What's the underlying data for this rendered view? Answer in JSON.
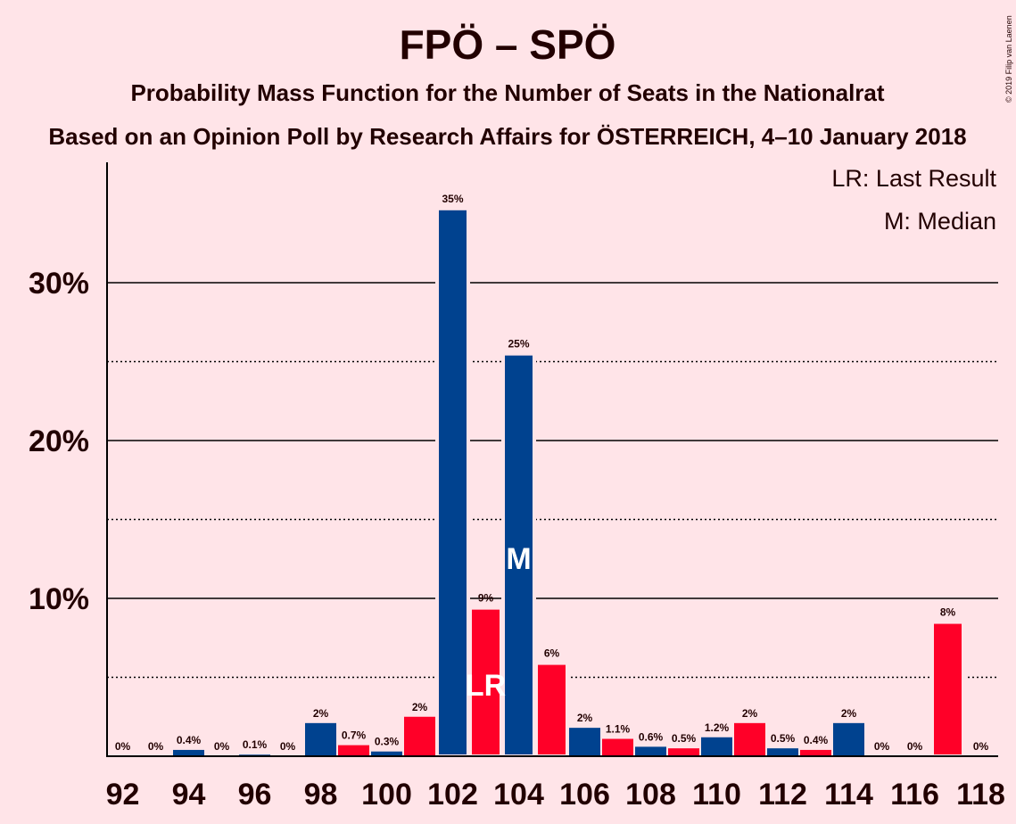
{
  "chart_data": {
    "type": "bar",
    "title": "FPÖ – SPÖ",
    "subtitle": "Probability Mass Function for the Number of Seats in the Nationalrat",
    "subtitle2": "Based on an Opinion Poll by Research Affairs for ÖSTERREICH, 4–10 January 2018",
    "copyright": "© 2019 Filip van Laenen",
    "legend": [
      "LR: Last Result",
      "M: Median"
    ],
    "ylim": [
      0,
      37
    ],
    "y_ticks": [
      {
        "value": 10,
        "label": "10%"
      },
      {
        "value": 20,
        "label": "20%"
      },
      {
        "value": 30,
        "label": "30%"
      }
    ],
    "y_dotted": [
      5,
      15,
      25
    ],
    "x_tick_labels": [
      "92",
      "94",
      "96",
      "98",
      "100",
      "102",
      "104",
      "106",
      "108",
      "110",
      "112",
      "114",
      "116",
      "118"
    ],
    "colors": {
      "blue": "#00428f",
      "red": "#ff0028",
      "background": "#ffe4e8",
      "text": "#220000"
    },
    "bars": [
      {
        "seats": 92,
        "value": 0,
        "label": "0%",
        "color": "blue"
      },
      {
        "seats": 93,
        "value": 0,
        "label": "0%",
        "color": "red"
      },
      {
        "seats": 94,
        "value": 0.4,
        "label": "0.4%",
        "color": "blue"
      },
      {
        "seats": 95,
        "value": 0,
        "label": "0%",
        "color": "red"
      },
      {
        "seats": 96,
        "value": 0.1,
        "label": "0.1%",
        "color": "blue"
      },
      {
        "seats": 97,
        "value": 0,
        "label": "0%",
        "color": "red"
      },
      {
        "seats": 98,
        "value": 2.1,
        "label": "2%",
        "color": "blue"
      },
      {
        "seats": 99,
        "value": 0.7,
        "label": "0.7%",
        "color": "red"
      },
      {
        "seats": 100,
        "value": 0.3,
        "label": "0.3%",
        "color": "blue"
      },
      {
        "seats": 101,
        "value": 2.5,
        "label": "2%",
        "color": "red"
      },
      {
        "seats": 102,
        "value": 34.7,
        "label": "35%",
        "color": "blue"
      },
      {
        "seats": 103,
        "value": 9.4,
        "label": "9%",
        "color": "red",
        "marker": "LR"
      },
      {
        "seats": 104,
        "value": 25.5,
        "label": "25%",
        "color": "blue",
        "marker": "M"
      },
      {
        "seats": 105,
        "value": 5.9,
        "label": "6%",
        "color": "red"
      },
      {
        "seats": 106,
        "value": 1.8,
        "label": "2%",
        "color": "blue"
      },
      {
        "seats": 107,
        "value": 1.1,
        "label": "1.1%",
        "color": "red"
      },
      {
        "seats": 108,
        "value": 0.6,
        "label": "0.6%",
        "color": "blue"
      },
      {
        "seats": 109,
        "value": 0.5,
        "label": "0.5%",
        "color": "red"
      },
      {
        "seats": 110,
        "value": 1.2,
        "label": "1.2%",
        "color": "blue"
      },
      {
        "seats": 111,
        "value": 2.1,
        "label": "2%",
        "color": "red"
      },
      {
        "seats": 112,
        "value": 0.5,
        "label": "0.5%",
        "color": "blue"
      },
      {
        "seats": 113,
        "value": 0.4,
        "label": "0.4%",
        "color": "red"
      },
      {
        "seats": 114,
        "value": 2.1,
        "label": "2%",
        "color": "blue"
      },
      {
        "seats": 115,
        "value": 0,
        "label": "0%",
        "color": "red"
      },
      {
        "seats": 116,
        "value": 0,
        "label": "0%",
        "color": "blue"
      },
      {
        "seats": 117,
        "value": 8.5,
        "label": "8%",
        "color": "red"
      },
      {
        "seats": 118,
        "value": 0,
        "label": "0%",
        "color": "blue"
      }
    ]
  }
}
